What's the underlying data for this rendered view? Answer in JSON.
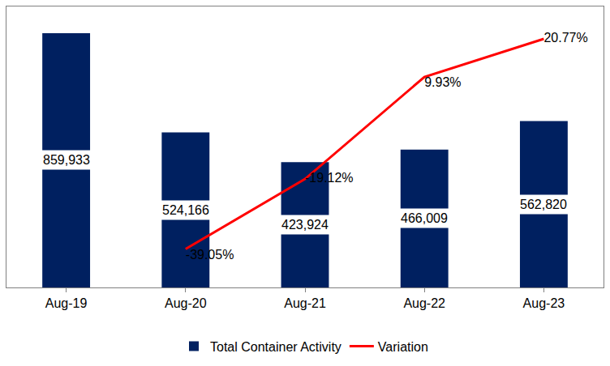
{
  "chart_data": {
    "type": "bar",
    "categories": [
      "Aug-19",
      "Aug-20",
      "Aug-21",
      "Aug-22",
      "Aug-23"
    ],
    "series": [
      {
        "name": "Total Container Activity",
        "type": "bar",
        "color": "#002060",
        "values": [
          859933,
          524166,
          423924,
          466009,
          562820
        ],
        "value_labels": [
          "859,933",
          "524,166",
          "423,924",
          "466,009",
          "562,820"
        ]
      },
      {
        "name": "Variation",
        "type": "line",
        "axis": "y2",
        "color": "#ff0000",
        "values": [
          null,
          -39.05,
          -19.12,
          9.93,
          20.77
        ],
        "value_labels": [
          null,
          "-39.05%",
          "-19.12%",
          "9.93%",
          "20.77%"
        ]
      }
    ],
    "ylim": [
      0,
      950000
    ],
    "y2lim": [
      -50,
      30
    ],
    "data_labels": true,
    "tick_labels": "x",
    "legend": "bottom",
    "grid": false
  }
}
